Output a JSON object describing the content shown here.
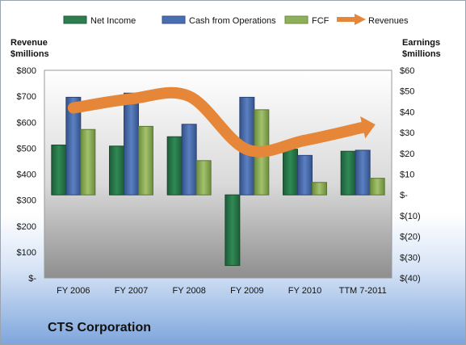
{
  "chart_data": {
    "type": "bar",
    "title": "CTS Corporation",
    "categories": [
      "FY 2006",
      "FY 2007",
      "FY 2008",
      "FY 2009",
      "FY 2010",
      "TTM 7-2011"
    ],
    "left_axis": {
      "label_line1": "Revenue",
      "label_line2": "$millions",
      "ylim": [
        0,
        800
      ],
      "ticks": [
        0,
        100,
        200,
        300,
        400,
        500,
        600,
        700,
        800
      ],
      "tick_labels": [
        "$-",
        "$100",
        "$200",
        "$300",
        "$400",
        "$500",
        "$600",
        "$700",
        "$800"
      ]
    },
    "right_axis": {
      "label_line1": "Earnings",
      "label_line2": "$millions",
      "ylim": [
        -40,
        60
      ],
      "ticks": [
        -40,
        -30,
        -20,
        -10,
        0,
        10,
        20,
        30,
        40,
        50,
        60
      ],
      "tick_labels": [
        "$(40)",
        "$(30)",
        "$(20)",
        "$(10)",
        "$-",
        "$10",
        "$20",
        "$30",
        "$40",
        "$50",
        "$60"
      ]
    },
    "series": [
      {
        "name": "Net Income",
        "axis": "right",
        "type": "bar",
        "color": "#2e7d4f",
        "values": [
          24,
          23.5,
          28,
          -34,
          22,
          21
        ]
      },
      {
        "name": "Cash from Operations",
        "axis": "right",
        "type": "bar",
        "color": "#4a6fb0",
        "values": [
          47,
          49,
          34,
          47,
          19,
          21.5
        ]
      },
      {
        "name": "FCF",
        "axis": "right",
        "type": "bar",
        "color": "#8fb05a",
        "values": [
          31.5,
          33,
          16.5,
          41,
          6,
          8
        ]
      },
      {
        "name": "Revenues",
        "axis": "left",
        "type": "line",
        "color": "#e58638",
        "values": [
          655,
          690,
          700,
          495,
          530,
          580
        ]
      }
    ],
    "legend_placement": "top",
    "grid": false
  }
}
